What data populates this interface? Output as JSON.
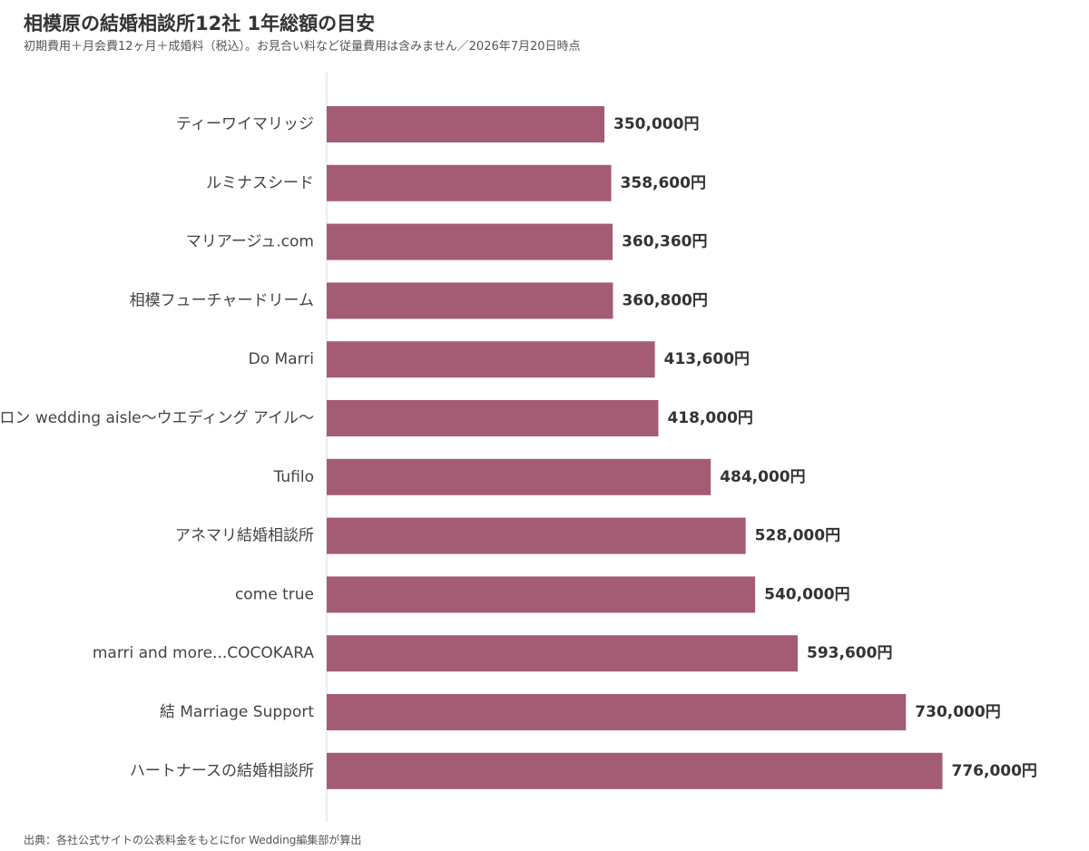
{
  "chart_data": {
    "type": "bar",
    "orientation": "horizontal",
    "title": "相模原の結婚相談所12社 1年総額の目安",
    "subtitle": "初期費用＋月会費12ヶ月＋成婚料（税込）。お見合い料など従量費用は含みません／2026年7月20日時点",
    "source": "出典：各社公式サイトの公表料金をもとにfor Wedding編集部が算出",
    "xlabel": "",
    "ylabel": "",
    "xlim": [
      0,
      780000
    ],
    "grid": false,
    "legend": "none",
    "bar_color": "#a45c74",
    "value_suffix": "円",
    "categories": [
      "ティーワイマリッジ",
      "ルミナスシード",
      "マリアージュ.com",
      "相模フューチャードリーム",
      "Do Marri",
      "ブライダルサロン wedding aisle〜ウエディング アイル〜",
      "Tufilo",
      "アネマリ結婚相談所",
      "come true",
      "marri and more...COCOKARA",
      "結 Marriage Support",
      "ハートナースの結婚相談所"
    ],
    "values": [
      350000,
      358600,
      360360,
      360800,
      413600,
      418000,
      484000,
      528000,
      540000,
      593600,
      730000,
      776000
    ]
  }
}
